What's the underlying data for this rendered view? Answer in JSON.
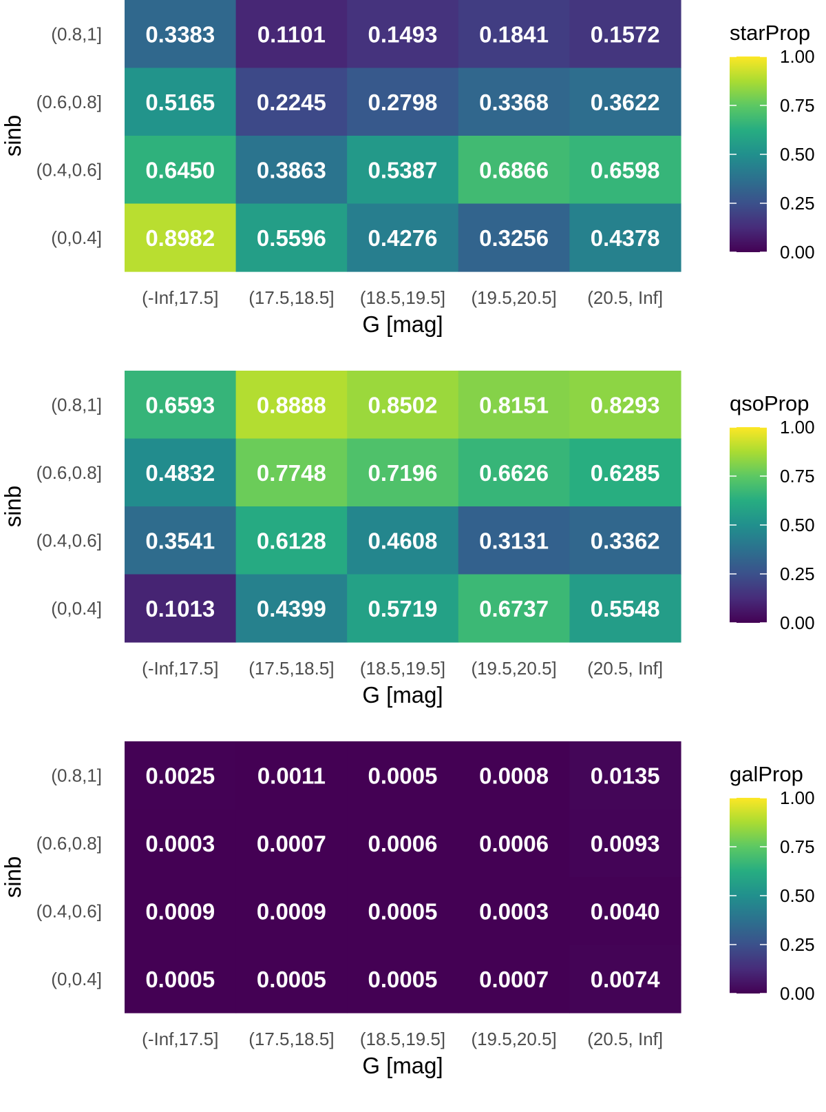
{
  "chart_data": [
    {
      "type": "heatmap",
      "title": "",
      "xlabel": "G [mag]",
      "ylabel": "sinb",
      "x_categories": [
        "(-Inf,17.5]",
        "(17.5,18.5]",
        "(18.5,19.5]",
        "(19.5,20.5]",
        "(20.5, Inf]"
      ],
      "y_categories": [
        "(0.8,1]",
        "(0.6,0.8]",
        "(0.4,0.6]",
        "(0,0.4]"
      ],
      "values": [
        [
          "0.3383",
          "0.1101",
          "0.1493",
          "0.1841",
          "0.1572"
        ],
        [
          "0.5165",
          "0.2245",
          "0.2798",
          "0.3368",
          "0.3622"
        ],
        [
          "0.6450",
          "0.3863",
          "0.5387",
          "0.6866",
          "0.6598"
        ],
        [
          "0.8982",
          "0.5596",
          "0.4276",
          "0.3256",
          "0.4378"
        ]
      ],
      "legend": {
        "title": "starProp",
        "ticks": [
          "1.00",
          "0.75",
          "0.50",
          "0.25",
          "0.00"
        ],
        "range": [
          0,
          1
        ],
        "position": "right"
      }
    },
    {
      "type": "heatmap",
      "title": "",
      "xlabel": "G [mag]",
      "ylabel": "sinb",
      "x_categories": [
        "(-Inf,17.5]",
        "(17.5,18.5]",
        "(18.5,19.5]",
        "(19.5,20.5]",
        "(20.5, Inf]"
      ],
      "y_categories": [
        "(0.8,1]",
        "(0.6,0.8]",
        "(0.4,0.6]",
        "(0,0.4]"
      ],
      "values": [
        [
          "0.6593",
          "0.8888",
          "0.8502",
          "0.8151",
          "0.8293"
        ],
        [
          "0.4832",
          "0.7748",
          "0.7196",
          "0.6626",
          "0.6285"
        ],
        [
          "0.3541",
          "0.6128",
          "0.4608",
          "0.3131",
          "0.3362"
        ],
        [
          "0.1013",
          "0.4399",
          "0.5719",
          "0.6737",
          "0.5548"
        ]
      ],
      "legend": {
        "title": "qsoProp",
        "ticks": [
          "1.00",
          "0.75",
          "0.50",
          "0.25",
          "0.00"
        ],
        "range": [
          0,
          1
        ],
        "position": "right"
      }
    },
    {
      "type": "heatmap",
      "title": "",
      "xlabel": "G [mag]",
      "ylabel": "sinb",
      "x_categories": [
        "(-Inf,17.5]",
        "(17.5,18.5]",
        "(18.5,19.5]",
        "(19.5,20.5]",
        "(20.5, Inf]"
      ],
      "y_categories": [
        "(0.8,1]",
        "(0.6,0.8]",
        "(0.4,0.6]",
        "(0,0.4]"
      ],
      "values": [
        [
          "0.0025",
          "0.0011",
          "0.0005",
          "0.0008",
          "0.0135"
        ],
        [
          "0.0003",
          "0.0007",
          "0.0006",
          "0.0006",
          "0.0093"
        ],
        [
          "0.0009",
          "0.0009",
          "0.0005",
          "0.0003",
          "0.0040"
        ],
        [
          "0.0005",
          "0.0005",
          "0.0005",
          "0.0007",
          "0.0074"
        ]
      ],
      "legend": {
        "title": "galProp",
        "ticks": [
          "1.00",
          "0.75",
          "0.50",
          "0.25",
          "0.00"
        ],
        "range": [
          0,
          1
        ],
        "position": "right"
      }
    }
  ]
}
